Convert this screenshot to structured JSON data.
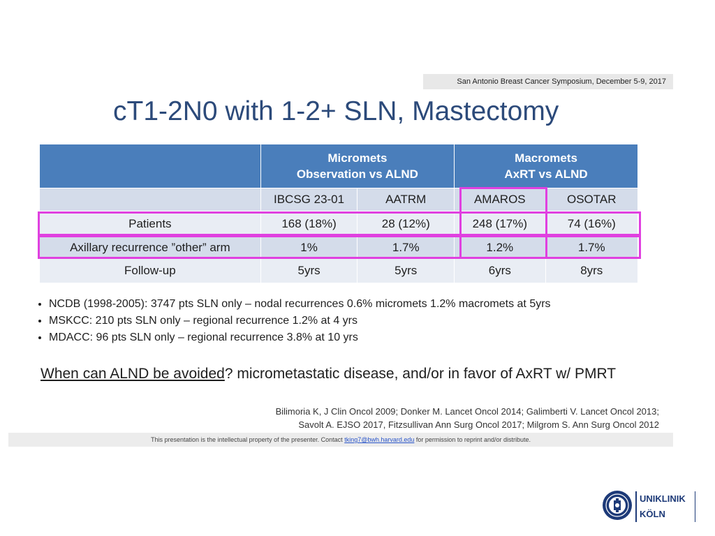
{
  "header": {
    "symposium": "San Antonio Breast Cancer Symposium, December 5-9, 2017",
    "title": "cT1-2N0 with 1-2+ SLN, Mastectomy"
  },
  "table": {
    "group1": [
      "Micromets",
      "Observation vs ALND"
    ],
    "group2": [
      "Macromets",
      "AxRT vs ALND"
    ],
    "studies": [
      "IBCSG 23-01",
      "AATRM",
      "AMAROS",
      "OSOTAR"
    ],
    "rows": [
      {
        "label": "Patients",
        "values": [
          "168 (18%)",
          "28 (12%)",
          "248 (17%)",
          "74 (16%)"
        ]
      },
      {
        "label": "Axillary recurrence ”other” arm",
        "values": [
          "1%",
          "1.7%",
          "1.2%",
          "1.7%"
        ]
      },
      {
        "label": "Follow-up",
        "values": [
          "5yrs",
          "5yrs",
          "6yrs",
          "8yrs"
        ]
      }
    ]
  },
  "bullets": [
    "NCDB (1998-2005): 3747 pts SLN only – nodal recurrences 0.6% micromets 1.2% macromets at 5yrs",
    "MSKCC: 210 pts SLN only – regional recurrence 1.2% at 4 yrs",
    "MDACC: 96 pts SLN only   – regional recurrence 3.8% at 10 yrs"
  ],
  "question": {
    "underlined": "When can ALND be avoided",
    "rest": "?  micrometastatic disease, and/or in favor of AxRT w/ PMRT"
  },
  "references": [
    "Bilimoria K, J Clin Oncol 2009; Donker M. Lancet Oncol 2014; Galimberti V. Lancet Oncol 2013;",
    "Savolt A. EJSO 2017,  Fitzsullivan Ann Surg Oncol 2017; Milgrom S. Ann Surg Oncol 2012"
  ],
  "footer": {
    "before": "This presentation is the intellectual property of the presenter.  Contact",
    "link": "tking7@bwh.harvard.edu",
    "after": "for permission to reprint and/or distribute."
  },
  "logo": {
    "line1": "UNIKLINIK",
    "line2": "KÖLN",
    "accent": "#1d3a78"
  },
  "colors": {
    "title": "#2c4a7a",
    "table_header": "#4a7ebb",
    "highlight": "#e040e0"
  }
}
